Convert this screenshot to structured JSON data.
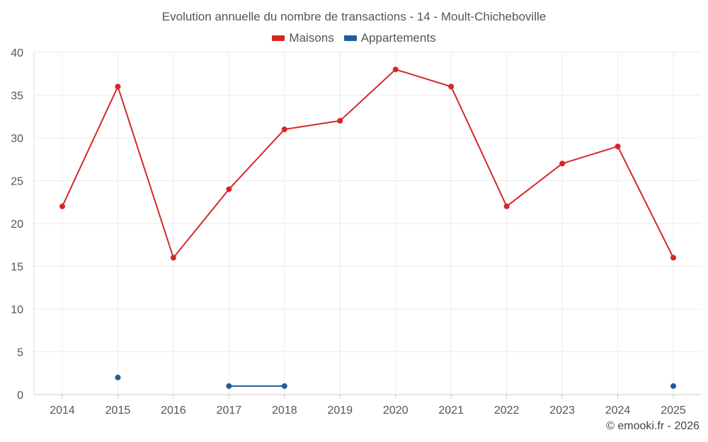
{
  "chart_data": {
    "type": "line",
    "title": "Evolution annuelle du nombre de transactions - 14 - Moult-Chicheboville",
    "xlabel": "",
    "ylabel": "",
    "categories": [
      "2014",
      "2015",
      "2016",
      "2017",
      "2018",
      "2019",
      "2020",
      "2021",
      "2022",
      "2023",
      "2024",
      "2025"
    ],
    "ylim": [
      0,
      40
    ],
    "yticks": [
      0,
      5,
      10,
      15,
      20,
      25,
      30,
      35,
      40
    ],
    "grid": true,
    "legend_position": "top-center",
    "series": [
      {
        "name": "Maisons",
        "color": "#d62728",
        "values": [
          22,
          36,
          16,
          24,
          31,
          32,
          38,
          36,
          22,
          27,
          29,
          16
        ]
      },
      {
        "name": "Appartements",
        "color": "#1f5f99",
        "values": [
          null,
          2,
          null,
          1,
          1,
          null,
          null,
          null,
          null,
          null,
          null,
          1
        ]
      }
    ]
  },
  "credit": "© emooki.fr - 2026"
}
